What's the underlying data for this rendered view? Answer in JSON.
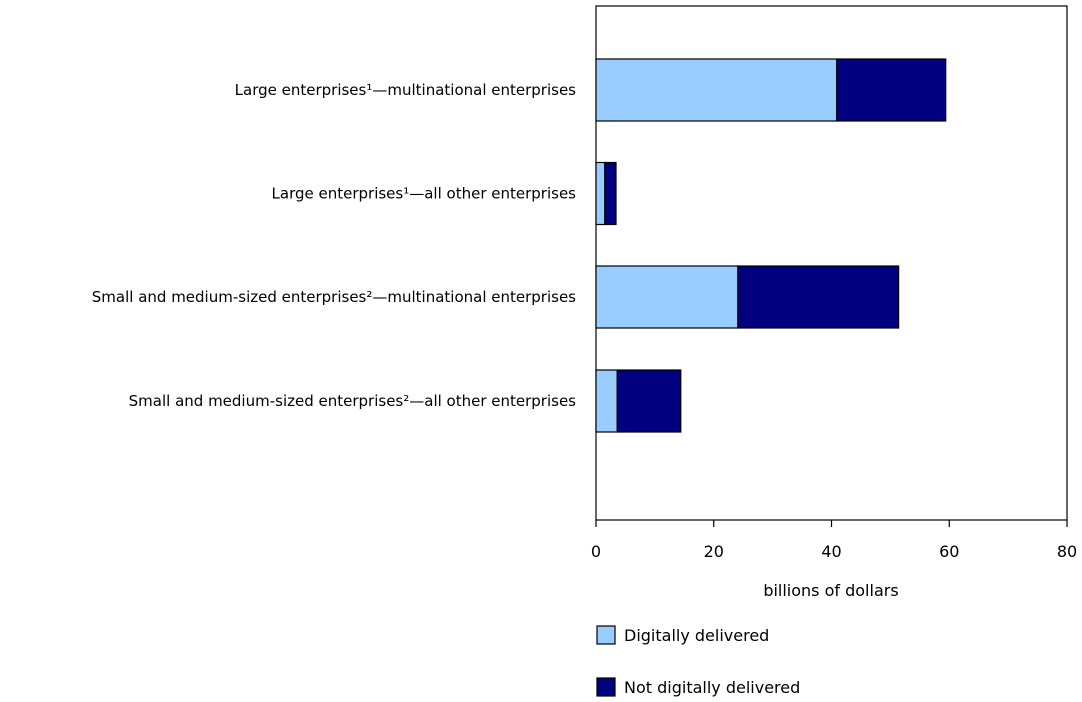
{
  "chart_data": {
    "type": "bar",
    "orientation": "horizontal",
    "stacked": true,
    "categories": [
      "Large enterprises¹—multinational enterprises",
      "Large enterprises¹—all other enterprises",
      "Small and medium-sized enterprises²—multinational enterprises",
      "Small and medium-sized enterprises²—all other enterprises"
    ],
    "series": [
      {
        "name": "Digitally delivered",
        "color": "#99ccff",
        "values": [
          40.9,
          1.5,
          24.1,
          3.6
        ]
      },
      {
        "name": "Not digitally delivered",
        "color": "#000080",
        "values": [
          18.5,
          1.9,
          27.3,
          10.8
        ]
      }
    ],
    "xlabel": "billions of dollars",
    "xlim": [
      0,
      80
    ],
    "xticks": [
      0,
      20,
      40,
      60,
      80
    ],
    "grid": false,
    "legend_position": "bottom"
  }
}
